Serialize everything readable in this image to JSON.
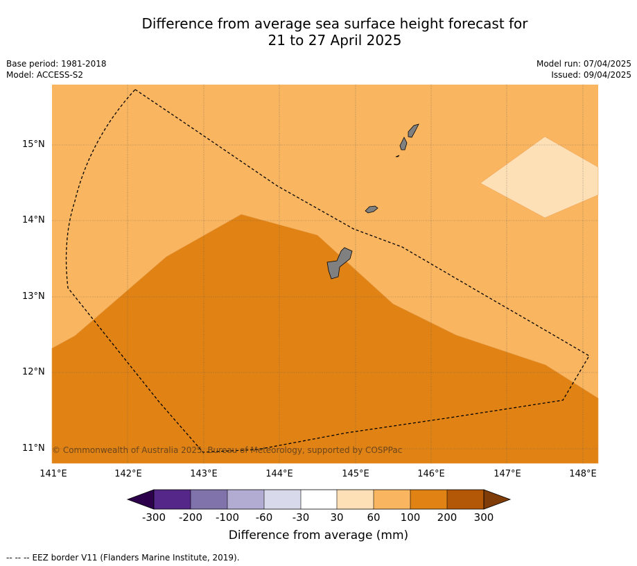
{
  "title": {
    "line1": "Difference from average sea surface height forecast for",
    "line2": "21 to 27 April 2025"
  },
  "meta": {
    "base_period": "Base period: 1981-2018",
    "model": "Model: ACCESS-S2",
    "model_run": "Model run: 07/04/2025",
    "issued": "Issued: 09/04/2025"
  },
  "map": {
    "lon_range": [
      141,
      148.2
    ],
    "lat_range": [
      10.8,
      15.8
    ],
    "lon_ticks": [
      "141°E",
      "142°E",
      "143°E",
      "144°E",
      "145°E",
      "146°E",
      "147°E",
      "148°E"
    ],
    "lat_ticks": [
      "15°N",
      "14°N",
      "13°N",
      "12°N",
      "11°N"
    ],
    "background_class_color": "#f9b55f",
    "colors": {
      "class_30_60": "#fde0b6",
      "class_60_100": "#f9b55f",
      "class_100_200": "#e08214",
      "land": "#808080"
    },
    "copyright": "© Commonwealth of Australia 2025, Bureau of Meteorology, supported by COSPPac"
  },
  "colorbar": {
    "labels": [
      "-300",
      "-200",
      "-100",
      "-60",
      "-30",
      "30",
      "60",
      "100",
      "200",
      "300"
    ],
    "colors": [
      "#2d004b",
      "#542788",
      "#8073ac",
      "#b2abd2",
      "#d8daeb",
      "#ffffff",
      "#fde0b6",
      "#f9b55f",
      "#e08214",
      "#b35806",
      "#7f3b08"
    ],
    "title": "Difference from average (mm)"
  },
  "footer": {
    "legend_symbol": "-- -- --",
    "legend_text": "EEZ border V11 (Flanders Marine Institute, 2019)."
  }
}
